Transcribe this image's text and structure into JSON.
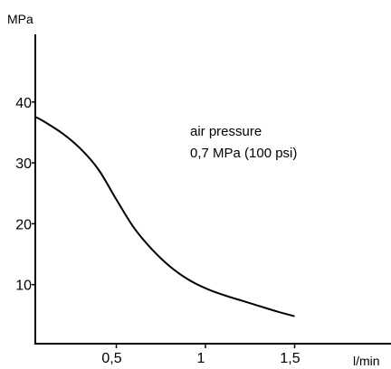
{
  "chart_data": {
    "type": "line",
    "title": "",
    "xlabel": "l/min",
    "ylabel": "MPa",
    "xlim": [
      0,
      1.8
    ],
    "ylim": [
      0,
      50
    ],
    "x_ticks": [
      0.5,
      1,
      1.5
    ],
    "x_tick_labels": [
      "0,5",
      "1",
      "1,5"
    ],
    "y_ticks": [
      10,
      20,
      30,
      40
    ],
    "y_tick_labels": [
      "10",
      "20",
      "30",
      "40"
    ],
    "grid": false,
    "legend": "none",
    "annotations": [
      "air pressure",
      "0,7 MPa (100 psi)"
    ],
    "line_color": "#000000",
    "series": [
      {
        "x": [
          0.05,
          0.1,
          0.2,
          0.3,
          0.4,
          0.5,
          0.6,
          0.7,
          0.8,
          0.9,
          1.0,
          1.1,
          1.2,
          1.3,
          1.4,
          1.5
        ],
        "y": [
          37.5,
          36.7,
          34.8,
          32.3,
          28.9,
          24.0,
          19.3,
          15.8,
          13.0,
          10.9,
          9.4,
          8.3,
          7.4,
          6.5,
          5.6,
          4.8
        ]
      }
    ]
  }
}
